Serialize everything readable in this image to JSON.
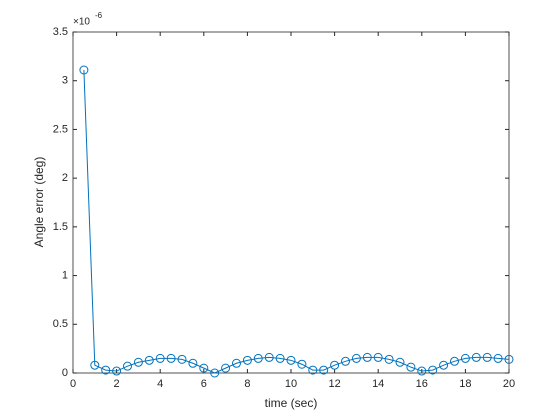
{
  "chart_data": {
    "type": "line",
    "xlabel": "time (sec)",
    "ylabel": "Angle error (deg)",
    "y_multiplier": "×10",
    "y_exponent": "-6",
    "x": [
      0.5,
      1,
      1.5,
      2,
      2.5,
      3,
      3.5,
      4,
      4.5,
      5,
      5.5,
      6,
      6.5,
      7,
      7.5,
      8,
      8.5,
      9,
      9.5,
      10,
      10.5,
      11,
      11.5,
      12,
      12.5,
      13,
      13.5,
      14,
      14.5,
      15,
      15.5,
      16,
      16.5,
      17,
      17.5,
      18,
      18.5,
      19,
      19.5,
      20
    ],
    "series": [
      {
        "color": "#0072bd",
        "marker": "circle",
        "values": [
          3.11,
          0.08,
          0.03,
          0.02,
          0.07,
          0.11,
          0.13,
          0.15,
          0.15,
          0.14,
          0.1,
          0.05,
          0.0,
          0.05,
          0.1,
          0.13,
          0.15,
          0.16,
          0.15,
          0.13,
          0.09,
          0.03,
          0.03,
          0.08,
          0.12,
          0.15,
          0.16,
          0.16,
          0.14,
          0.11,
          0.06,
          0.02,
          0.03,
          0.08,
          0.12,
          0.15,
          0.16,
          0.16,
          0.15,
          0.14
        ]
      }
    ],
    "xlim": [
      0,
      20
    ],
    "xticks": [
      0,
      2,
      4,
      6,
      8,
      10,
      12,
      14,
      16,
      18,
      20
    ],
    "ylim": [
      0,
      3.5
    ],
    "yticks": [
      0,
      0.5,
      1,
      1.5,
      2,
      2.5,
      3,
      3.5
    ],
    "grid": false,
    "box": true
  }
}
